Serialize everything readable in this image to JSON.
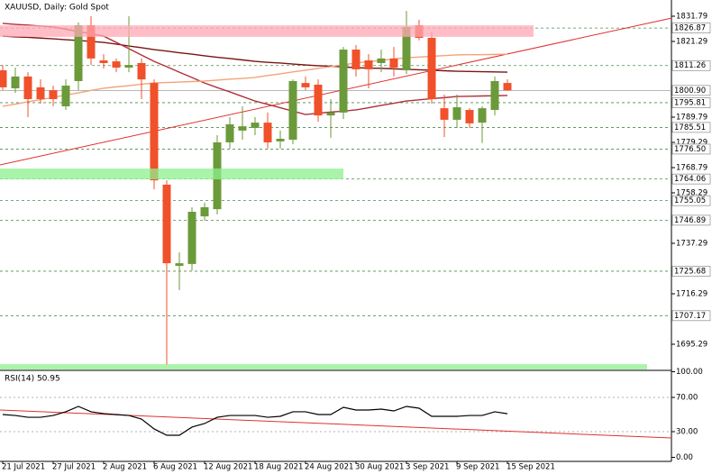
{
  "chart_data": [
    {
      "type": "candlestick",
      "title": "XAUUSD, Daily:  Gold Spot",
      "categories": [
        "21 Jul 2021",
        null,
        null,
        null,
        "27 Jul 2021",
        null,
        null,
        null,
        "2 Aug 2021",
        null,
        null,
        null,
        "6 Aug 2021",
        null,
        null,
        null,
        "12 Aug 2021",
        null,
        null,
        null,
        "18 Aug 2021",
        null,
        null,
        null,
        "24 Aug 2021",
        null,
        null,
        null,
        "30 Aug 2021",
        null,
        null,
        null,
        "3 Sep 2021",
        null,
        null,
        null,
        "9 Sep 2021",
        null,
        null,
        null,
        "15 Sep 2021"
      ],
      "open": [
        1809.3,
        1801.8,
        1806.7,
        1802.2,
        1801.0,
        1794.3,
        1804.8,
        1828.0,
        1813.4,
        1813.0,
        1810.4,
        1812.3,
        1804.0,
        1761.7,
        1727.9,
        1728.7,
        1748.5,
        1751.5,
        1779.3,
        1784.2,
        1785.3,
        1787.5,
        1779.7,
        1780.4,
        1804.0,
        1803.3,
        1790.5,
        1791.7,
        1817.9,
        1813.4,
        1812.3,
        1814.2,
        1809.3,
        1828.0,
        1822.8,
        1793.5,
        1788.7,
        1792.8,
        1787.5,
        1792.8,
        1804.0
      ],
      "high": [
        1811.5,
        1810.4,
        1808.5,
        1805.5,
        1802.9,
        1805.5,
        1829.2,
        1831.8,
        1816.0,
        1814.2,
        1831.8,
        1814.2,
        1805.5,
        1763.5,
        1733.5,
        1752.3,
        1754.2,
        1782.3,
        1789.8,
        1794.3,
        1789.8,
        1791.7,
        1784.2,
        1805.5,
        1806.7,
        1805.5,
        1797.3,
        1819.0,
        1819.8,
        1816.0,
        1817.9,
        1819.0,
        1834.0,
        1830.3,
        1825.4,
        1799.2,
        1799.2,
        1793.5,
        1794.3,
        1806.7,
        1805.5
      ],
      "low": [
        1801.0,
        1799.9,
        1789.8,
        1795.4,
        1794.3,
        1792.8,
        1801.0,
        1811.5,
        1810.0,
        1808.5,
        1808.5,
        1797.3,
        1759.8,
        1686.7,
        1717.8,
        1726.0,
        1746.7,
        1749.3,
        1776.7,
        1780.4,
        1782.3,
        1776.7,
        1776.7,
        1778.5,
        1801.0,
        1787.9,
        1781.2,
        1789.0,
        1806.7,
        1801.8,
        1808.5,
        1806.7,
        1807.8,
        1821.7,
        1795.4,
        1781.5,
        1785.3,
        1785.3,
        1779.0,
        1790.5,
        1800.7
      ],
      "close": [
        1802.2,
        1806.7,
        1797.3,
        1797.3,
        1797.3,
        1802.9,
        1828.0,
        1814.2,
        1812.3,
        1810.4,
        1811.5,
        1805.5,
        1763.5,
        1729.0,
        1729.0,
        1750.4,
        1752.3,
        1779.3,
        1786.8,
        1786.0,
        1787.5,
        1779.3,
        1780.8,
        1804.8,
        1802.2,
        1790.5,
        1791.7,
        1817.9,
        1809.7,
        1809.7,
        1814.2,
        1810.4,
        1827.3,
        1822.8,
        1797.3,
        1788.7,
        1793.9,
        1787.2,
        1793.5,
        1804.8,
        1800.9
      ],
      "up_color": "#6b9a3a",
      "down_color": "#f0502a",
      "ylim": [
        1684.79,
        1838.54
      ],
      "yticks": [
        1831.79,
        1821.29,
        1789.79,
        1779.29,
        1768.79,
        1758.29,
        1737.29,
        1716.29,
        1695.29
      ],
      "levels": [
        1826.87,
        1811.26,
        1795.81,
        1785.51,
        {
          "value": 1776.5,
          "label": "1776.50"
        },
        1764.06,
        1755.05,
        1746.89,
        1725.68,
        1707.17
      ],
      "level_color": "#4f8a4f",
      "current_price": {
        "value": 1800.9,
        "label": "1800.90"
      },
      "moving_averages": [
        {
          "color": "#7a1414",
          "values": [
            1823.5,
            1823.2,
            1823.0,
            1822.7,
            1822.4,
            1822.0,
            1821.7,
            1821.3,
            1820.9,
            1820.2,
            1819.4,
            1818.7,
            1817.9,
            1817.3,
            1816.6,
            1816.0,
            1815.3,
            1814.7,
            1814.2,
            1813.6,
            1813.0,
            1812.6,
            1812.3,
            1811.9,
            1811.5,
            1811.2,
            1811.0,
            1810.7,
            1810.4,
            1810.2,
            1810.1,
            1809.9,
            1809.7,
            1809.5,
            1809.3,
            1809.1,
            1808.9,
            1808.8,
            1808.7,
            1808.6,
            1808.5
          ]
        },
        {
          "color": "#b0303a",
          "values": [
            1828.8,
            1828.4,
            1828.1,
            1827.7,
            1827.3,
            1826.4,
            1825.4,
            1824.5,
            1823.5,
            1820.9,
            1818.3,
            1815.6,
            1813.0,
            1810.8,
            1808.5,
            1806.3,
            1804.0,
            1802.1,
            1800.3,
            1798.4,
            1796.5,
            1795.1,
            1793.7,
            1792.3,
            1790.9,
            1791.4,
            1791.9,
            1792.3,
            1792.8,
            1793.7,
            1794.7,
            1795.6,
            1796.5,
            1797.0,
            1797.5,
            1797.9,
            1798.4,
            1798.5,
            1798.6,
            1798.7,
            1798.8
          ]
        },
        {
          "color": "#f2a47a",
          "values": [
            1794.3,
            1795.2,
            1796.2,
            1797.1,
            1798.0,
            1799.0,
            1799.9,
            1800.9,
            1801.8,
            1802.4,
            1802.9,
            1803.5,
            1804.0,
            1804.2,
            1804.4,
            1804.6,
            1804.8,
            1805.2,
            1805.6,
            1805.9,
            1806.3,
            1807.1,
            1807.8,
            1808.6,
            1809.3,
            1810.1,
            1810.8,
            1811.6,
            1812.3,
            1812.9,
            1813.4,
            1814.0,
            1814.5,
            1814.8,
            1815.1,
            1815.4,
            1815.7,
            1815.8,
            1815.8,
            1815.9,
            1816.0
          ]
        }
      ],
      "trendline": {
        "color": "#e03030",
        "values": [
          1769.9,
          1831.0
        ]
      },
      "zones": [
        {
          "color": "#ffa8b4",
          "range": [
            1823.2,
            1828.0
          ]
        },
        {
          "color": "#8ef08e",
          "range": [
            1763.9,
            1768.4
          ]
        },
        {
          "color": "#8ef08e",
          "range": [
            1684.8,
            1687.0
          ]
        }
      ]
    },
    {
      "type": "line",
      "title": "RSI(14) 50.95",
      "color": "#000000",
      "values": [
        50.0,
        48.9,
        46.8,
        46.8,
        48.9,
        53.2,
        59.5,
        53.2,
        51.1,
        50.0,
        48.9,
        44.7,
        33.2,
        25.8,
        25.8,
        35.3,
        39.5,
        46.8,
        48.9,
        48.9,
        48.9,
        46.8,
        47.9,
        53.2,
        53.2,
        50.0,
        50.0,
        58.4,
        55.3,
        55.3,
        56.3,
        54.2,
        59.5,
        57.4,
        47.9,
        47.9,
        47.9,
        48.9,
        48.9,
        53.2,
        50.95
      ],
      "ylim": [
        -4.7,
        100.5
      ],
      "yticks": [
        {
          "value": 100,
          "label": "100.00"
        },
        {
          "value": 70,
          "label": "70.00"
        },
        {
          "value": 30,
          "label": "30.00"
        },
        {
          "value": 0,
          "label": "0.00"
        }
      ],
      "trendline": {
        "color": "#e03030",
        "values": [
          55.3,
          22.6
        ]
      }
    }
  ]
}
